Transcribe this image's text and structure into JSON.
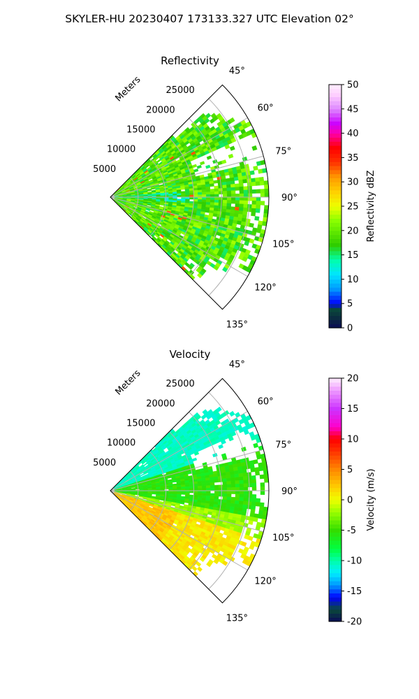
{
  "suptitle": "SKYLER-HU  20230407  173133.327 UTC Elevation 02°",
  "colors": {
    "grid": "#b0b0b0",
    "frame": "#000000",
    "background": "#ffffff"
  },
  "chart_data": [
    {
      "type": "heatmap",
      "title": "Reflectivity",
      "projection": "polar-sector",
      "theta_range_deg": [
        45,
        135
      ],
      "theta_ticks": [
        "45°",
        "60°",
        "75°",
        "90°",
        "105°",
        "120°",
        "135°"
      ],
      "r_axis_label": "Meters",
      "r_ticks": [
        "5000",
        "10000",
        "15000",
        "20000",
        "25000"
      ],
      "r_max": 28500,
      "grid": true,
      "colorbar": {
        "label": "Reflectivity dBZ",
        "range": [
          0,
          50
        ],
        "ticks": [
          "0",
          "5",
          "10",
          "15",
          "20",
          "25",
          "30",
          "35",
          "40",
          "45",
          "50"
        ]
      },
      "typical_values": "mostly 15–25 dBZ, scattered cells near 35 dBZ"
    },
    {
      "type": "heatmap",
      "title": "Velocity",
      "projection": "polar-sector",
      "theta_range_deg": [
        45,
        135
      ],
      "theta_ticks": [
        "45°",
        "60°",
        "75°",
        "90°",
        "105°",
        "120°",
        "135°"
      ],
      "r_axis_label": "Meters",
      "r_ticks": [
        "5000",
        "10000",
        "15000",
        "20000",
        "25000"
      ],
      "r_max": 28500,
      "grid": true,
      "colorbar": {
        "label": "Velocity (m/s)",
        "range": [
          -20,
          20
        ],
        "ticks": [
          "-20",
          "-15",
          "-10",
          "-5",
          "0",
          "5",
          "10",
          "15",
          "20"
        ]
      },
      "typical_values": "about -10 m/s near 50–70°, -5 m/s near 75–100°, 0 to +3 m/s near 105–135°"
    }
  ]
}
